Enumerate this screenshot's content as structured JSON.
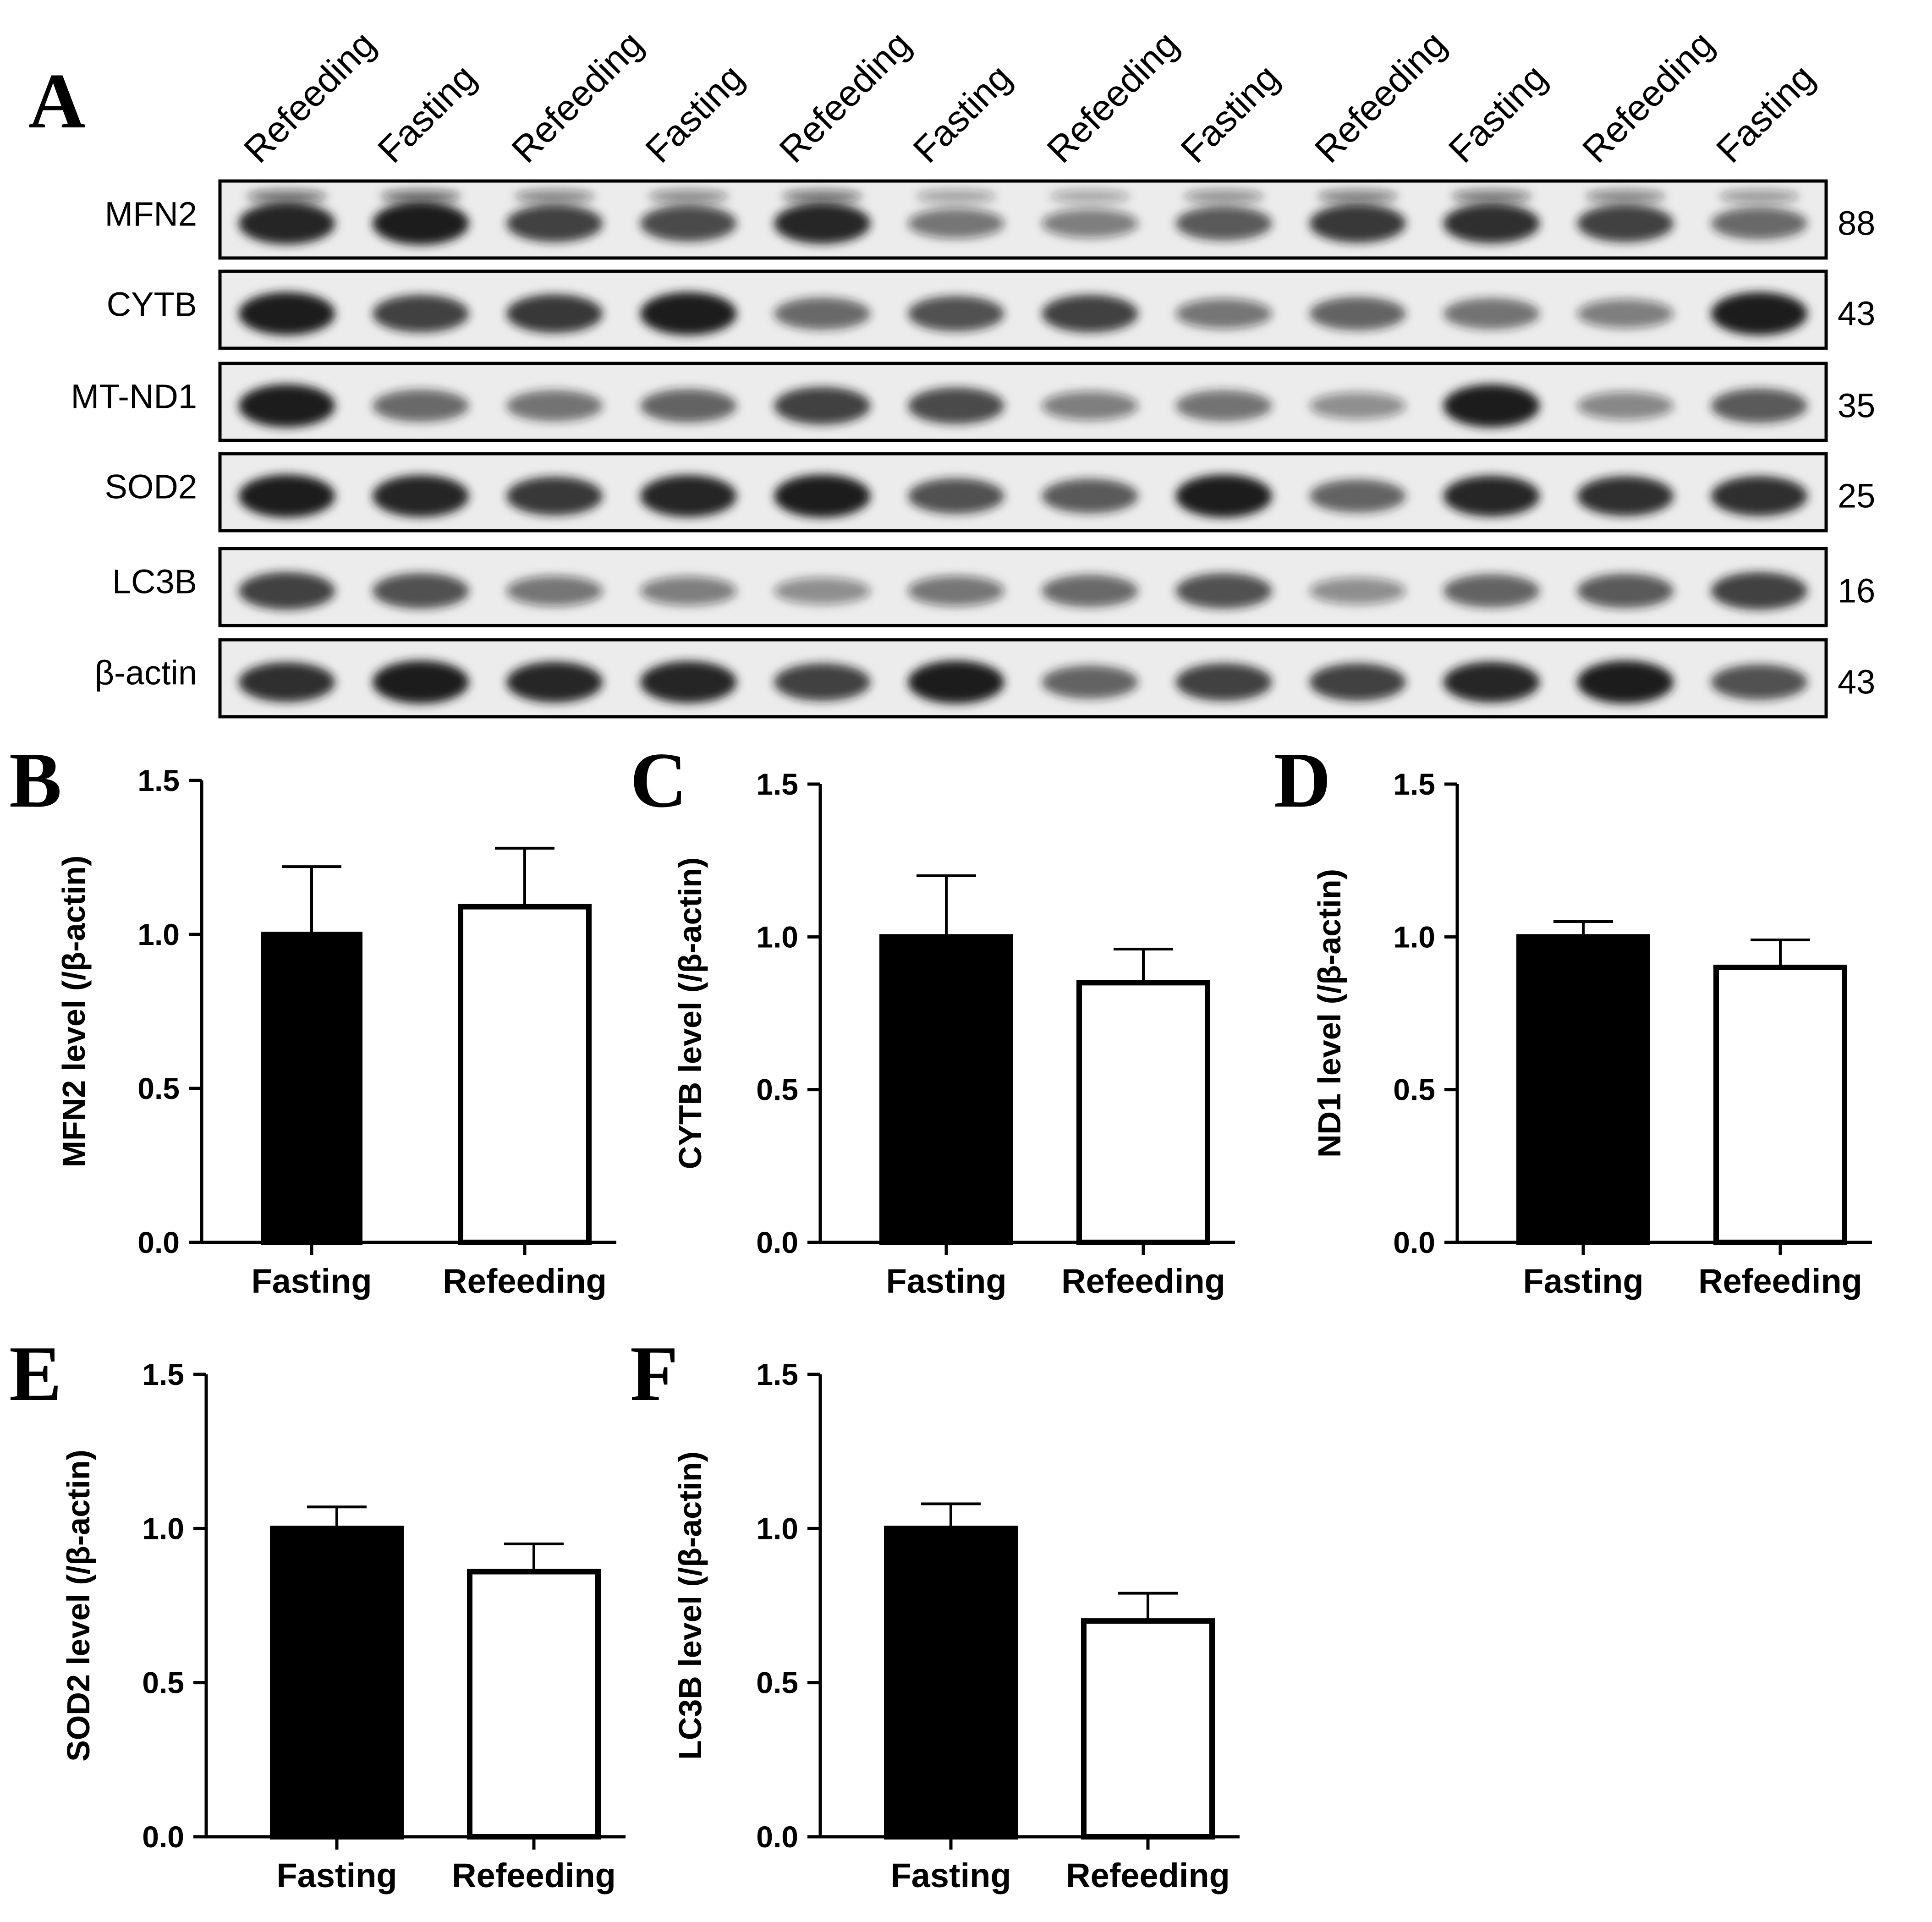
{
  "blot": {
    "panel_label": "A",
    "lanes": [
      "Refeeding",
      "Fasting",
      "Refeeding",
      "Fasting",
      "Refeeding",
      "Fasting",
      "Refeeding",
      "Fasting",
      "Refeeding",
      "Fasting",
      "Refeeding",
      "Fasting"
    ],
    "rows": [
      {
        "protein": "MFN2",
        "mw": "88"
      },
      {
        "protein": "CYTB",
        "mw": "43"
      },
      {
        "protein": "MT-ND1",
        "mw": "35"
      },
      {
        "protein": "SOD2",
        "mw": "25"
      },
      {
        "protein": "LC3B",
        "mw": "16"
      },
      {
        "protein": "β-actin",
        "mw": "43"
      }
    ],
    "colors": {
      "band": "#1a1a1a",
      "frame": "#000000",
      "background": "#ececec"
    }
  },
  "chart_data": [
    {
      "panel": "B",
      "type": "bar",
      "categories": [
        "Fasting",
        "Refeeding"
      ],
      "values": [
        1.0,
        1.09
      ],
      "errors": [
        0.22,
        0.19
      ],
      "ylabel": "MFN2 level (/β-actin)",
      "xlabel": "",
      "title": "",
      "ylim": [
        0,
        1.5
      ],
      "yticks": [
        "0.0",
        "0.5",
        "1.0",
        "1.5"
      ],
      "colors": [
        "#000000",
        "#ffffff"
      ]
    },
    {
      "panel": "C",
      "type": "bar",
      "categories": [
        "Fasting",
        "Refeeding"
      ],
      "values": [
        1.0,
        0.85
      ],
      "errors": [
        0.2,
        0.11
      ],
      "ylabel": "CYTB level (/β-actin)",
      "xlabel": "",
      "title": "",
      "ylim": [
        0,
        1.5
      ],
      "yticks": [
        "0.0",
        "0.5",
        "1.0",
        "1.5"
      ],
      "colors": [
        "#000000",
        "#ffffff"
      ]
    },
    {
      "panel": "D",
      "type": "bar",
      "categories": [
        "Fasting",
        "Refeeding"
      ],
      "values": [
        1.0,
        0.9
      ],
      "errors": [
        0.05,
        0.09
      ],
      "ylabel": "ND1 level (/β-actin)",
      "xlabel": "",
      "title": "",
      "ylim": [
        0,
        1.5
      ],
      "yticks": [
        "0.0",
        "0.5",
        "1.0",
        "1.5"
      ],
      "colors": [
        "#000000",
        "#ffffff"
      ]
    },
    {
      "panel": "E",
      "type": "bar",
      "categories": [
        "Fasting",
        "Refeeding"
      ],
      "values": [
        1.0,
        0.86
      ],
      "errors": [
        0.07,
        0.09
      ],
      "ylabel": "SOD2 level (/β-actin)",
      "xlabel": "",
      "title": "",
      "ylim": [
        0,
        1.5
      ],
      "yticks": [
        "0.0",
        "0.5",
        "1.0",
        "1.5"
      ],
      "colors": [
        "#000000",
        "#ffffff"
      ]
    },
    {
      "panel": "F",
      "type": "bar",
      "categories": [
        "Fasting",
        "Refeeding"
      ],
      "values": [
        1.0,
        0.7
      ],
      "errors": [
        0.08,
        0.09
      ],
      "ylabel": "LC3B level (/β-actin)",
      "xlabel": "",
      "title": "",
      "ylim": [
        0,
        1.5
      ],
      "yticks": [
        "0.0",
        "0.5",
        "1.0",
        "1.5"
      ],
      "colors": [
        "#000000",
        "#ffffff"
      ]
    }
  ]
}
